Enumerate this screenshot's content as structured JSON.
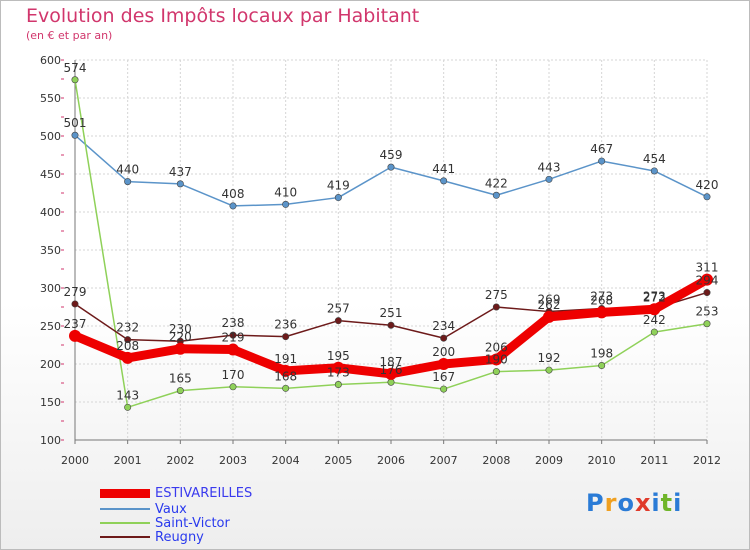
{
  "chart_data": {
    "type": "line",
    "title": "Evolution des Impôts locaux par Habitant",
    "subtitle": "(en € et par an)",
    "x": [
      "2000",
      "2001",
      "2002",
      "2003",
      "2004",
      "2005",
      "2006",
      "2007",
      "2008",
      "2009",
      "2010",
      "2011",
      "2012"
    ],
    "ylim": [
      100,
      600
    ],
    "yticks": [
      100,
      150,
      200,
      250,
      300,
      350,
      400,
      450,
      500,
      550,
      600
    ],
    "grid": true,
    "legend_position": "bottom-left",
    "series": [
      {
        "name": "Vaux",
        "color": "#5b94c9",
        "values": [
          501,
          440,
          437,
          408,
          410,
          419,
          459,
          441,
          422,
          443,
          467,
          454,
          420
        ]
      },
      {
        "name": "Saint-Victor",
        "color": "#8fd159",
        "values": [
          574,
          143,
          165,
          170,
          168,
          173,
          176,
          167,
          190,
          192,
          198,
          242,
          253
        ]
      },
      {
        "name": "Reugny",
        "color": "#6d1a1a",
        "values": [
          279,
          232,
          230,
          238,
          236,
          257,
          251,
          234,
          275,
          269,
          273,
          273,
          294
        ]
      },
      {
        "name": "ESTIVAREILLES",
        "color": "#ee0000",
        "values": [
          237,
          208,
          220,
          219,
          191,
          195,
          187,
          200,
          206,
          262,
          268,
          272,
          311
        ]
      }
    ],
    "legend_order": [
      "ESTIVAREILLES",
      "Vaux",
      "Saint-Victor",
      "Reugny"
    ]
  },
  "logo": {
    "text": "Proxiti",
    "letters": [
      "P",
      "r",
      "o",
      "x",
      "i",
      "t",
      "i"
    ],
    "colors": [
      "#2a7bd6",
      "#f0a020",
      "#2a7bd6",
      "#e03a2a",
      "#2a7bd6",
      "#70b52a",
      "#2a7bd6"
    ]
  }
}
